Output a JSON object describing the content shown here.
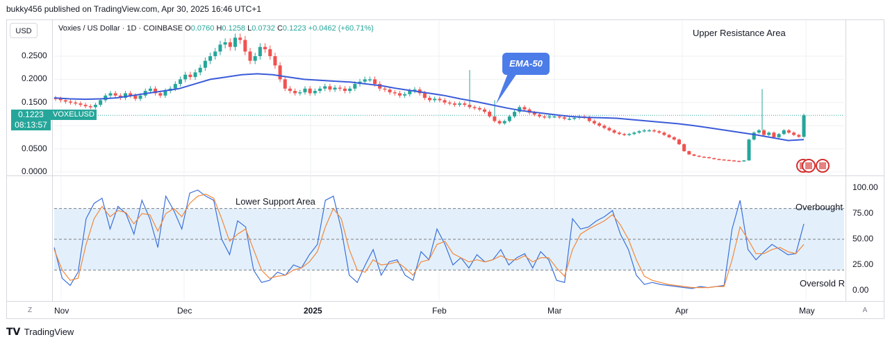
{
  "header": {
    "credit": "bukky456 published on TradingView.com, Apr 30, 2025 16:46 UTC+1"
  },
  "legend": {
    "title": "Voxies / US Dollar · 1D · COINBASE",
    "o_label": "O",
    "o_value": "0.0760",
    "h_label": "H",
    "h_value": "0.1258",
    "l_label": "L",
    "l_value": "0.0732",
    "c_label": "C",
    "c_value": "0.1223",
    "change": "+0.0462 (+60.71%)"
  },
  "currency_button": "USD",
  "price_tag": {
    "value": "0.1223",
    "symbol": "VOXELUSD",
    "countdown": "08:13:57"
  },
  "annotations": {
    "upper": "Upper Resistance Area",
    "lower": "Lower Support Area",
    "overbought": "Overbought",
    "oversold": "Oversold R",
    "ema": "EMA-50"
  },
  "price_axis_labels": [
    "0.2500",
    "0.2000",
    "0.1500",
    "0.0500",
    "0.0000"
  ],
  "osc_axis_labels": [
    "100.00",
    "75.00",
    "50.00",
    "25.00",
    "0.00"
  ],
  "time_labels": [
    {
      "text": "Nov",
      "bold": false
    },
    {
      "text": "Dec",
      "bold": false
    },
    {
      "text": "2025",
      "bold": true
    },
    {
      "text": "Feb",
      "bold": false
    },
    {
      "text": "Mar",
      "bold": false
    },
    {
      "text": "Apr",
      "bold": false
    },
    {
      "text": "May",
      "bold": false
    }
  ],
  "buttons": {
    "zoom_left": "Z",
    "auto_right": "A"
  },
  "brand": {
    "name": "TradingView"
  },
  "colors": {
    "up": "#26a69a",
    "down": "#ef5350",
    "ema": "#3a5bd9",
    "k_line": "#3a6fd9",
    "d_line": "#f2873a",
    "band": "#e3f0fb"
  },
  "chart_data": [
    {
      "type": "candlestick",
      "title": "Voxies / US Dollar · 1D · COINBASE",
      "ylim": [
        0.0,
        0.29
      ],
      "x_range": [
        "2024-10-30",
        "2025-04-30"
      ],
      "indicator": "EMA-50",
      "candles_close": [
        0.158,
        0.155,
        0.152,
        0.15,
        0.148,
        0.145,
        0.142,
        0.14,
        0.145,
        0.155,
        0.165,
        0.17,
        0.165,
        0.16,
        0.17,
        0.165,
        0.158,
        0.165,
        0.175,
        0.18,
        0.17,
        0.165,
        0.175,
        0.18,
        0.19,
        0.2,
        0.21,
        0.205,
        0.215,
        0.225,
        0.24,
        0.25,
        0.26,
        0.275,
        0.28,
        0.27,
        0.29,
        0.285,
        0.26,
        0.24,
        0.25,
        0.27,
        0.265,
        0.25,
        0.23,
        0.2,
        0.18,
        0.175,
        0.17,
        0.172,
        0.18,
        0.17,
        0.175,
        0.18,
        0.185,
        0.178,
        0.182,
        0.18,
        0.175,
        0.18,
        0.19,
        0.195,
        0.2,
        0.2,
        0.19,
        0.18,
        0.178,
        0.172,
        0.17,
        0.165,
        0.168,
        0.175,
        0.178,
        0.17,
        0.16,
        0.155,
        0.158,
        0.155,
        0.15,
        0.148,
        0.145,
        0.148,
        0.145,
        0.14,
        0.138,
        0.135,
        0.13,
        0.12,
        0.11,
        0.105,
        0.11,
        0.12,
        0.13,
        0.14,
        0.135,
        0.128,
        0.124,
        0.12,
        0.118,
        0.12,
        0.12,
        0.118,
        0.115,
        0.115,
        0.117,
        0.12,
        0.118,
        0.11,
        0.105,
        0.1,
        0.095,
        0.09,
        0.085,
        0.082,
        0.08,
        0.082,
        0.085,
        0.088,
        0.09,
        0.09,
        0.088,
        0.085,
        0.08,
        0.075,
        0.07,
        0.06,
        0.045,
        0.038,
        0.035,
        0.033,
        0.032,
        0.03,
        0.028,
        0.027,
        0.026,
        0.025,
        0.024,
        0.023,
        0.025,
        0.07,
        0.085,
        0.09,
        0.08,
        0.085,
        0.075,
        0.082,
        0.09,
        0.085,
        0.08,
        0.076,
        0.1223
      ],
      "ema50": [
        0.16,
        0.158,
        0.157,
        0.158,
        0.16,
        0.165,
        0.17,
        0.175,
        0.18,
        0.19,
        0.2,
        0.205,
        0.21,
        0.212,
        0.21,
        0.205,
        0.2,
        0.198,
        0.196,
        0.194,
        0.19,
        0.186,
        0.18,
        0.175,
        0.17,
        0.165,
        0.158,
        0.152,
        0.145,
        0.138,
        0.132,
        0.128,
        0.124,
        0.12,
        0.118,
        0.117,
        0.116,
        0.113,
        0.11,
        0.107,
        0.104,
        0.1,
        0.095,
        0.09,
        0.085,
        0.08,
        0.074,
        0.068,
        0.07
      ],
      "annotations": [
        "Upper Resistance Area",
        "EMA-50"
      ]
    },
    {
      "type": "line",
      "title": "Stochastic oscillator",
      "ylim": [
        0,
        100
      ],
      "levels": [
        80,
        50,
        20
      ],
      "annotations": [
        "Lower Support Area",
        "Overbought",
        "Oversold R"
      ],
      "series": [
        {
          "values": [
            42,
            12,
            5,
            18,
            70,
            85,
            90,
            60,
            82,
            75,
            55,
            88,
            70,
            42,
            92,
            78,
            60,
            95,
            98,
            92,
            88,
            50,
            35,
            68,
            62,
            20,
            8,
            10,
            18,
            15,
            25,
            22,
            35,
            45,
            88,
            92,
            60,
            15,
            8,
            25,
            40,
            15,
            28,
            30,
            15,
            10,
            38,
            30,
            60,
            45,
            25,
            32,
            22,
            35,
            28,
            30,
            40,
            25,
            32,
            36,
            22,
            38,
            30,
            10,
            8,
            70,
            60,
            62,
            68,
            72,
            78,
            55,
            40,
            15,
            6,
            8,
            6,
            5,
            4,
            3,
            2,
            4,
            3,
            4,
            5,
            60,
            88,
            40,
            30,
            38,
            45,
            40,
            35,
            36,
            65
          ]
        },
        {
          "values": [
            40,
            20,
            10,
            12,
            45,
            70,
            82,
            72,
            78,
            76,
            65,
            75,
            74,
            58,
            75,
            80,
            72,
            85,
            92,
            94,
            90,
            70,
            48,
            55,
            60,
            40,
            20,
            12,
            14,
            15,
            20,
            22,
            28,
            38,
            62,
            80,
            70,
            40,
            20,
            18,
            30,
            25,
            26,
            28,
            22,
            15,
            28,
            30,
            45,
            48,
            36,
            32,
            28,
            30,
            28,
            30,
            34,
            30,
            30,
            34,
            28,
            32,
            32,
            22,
            14,
            40,
            55,
            60,
            64,
            68,
            74,
            64,
            50,
            30,
            14,
            10,
            8,
            6,
            5,
            4,
            3,
            3,
            3,
            4,
            4,
            30,
            62,
            50,
            36,
            36,
            40,
            42,
            38,
            36,
            45
          ]
        }
      ]
    }
  ]
}
